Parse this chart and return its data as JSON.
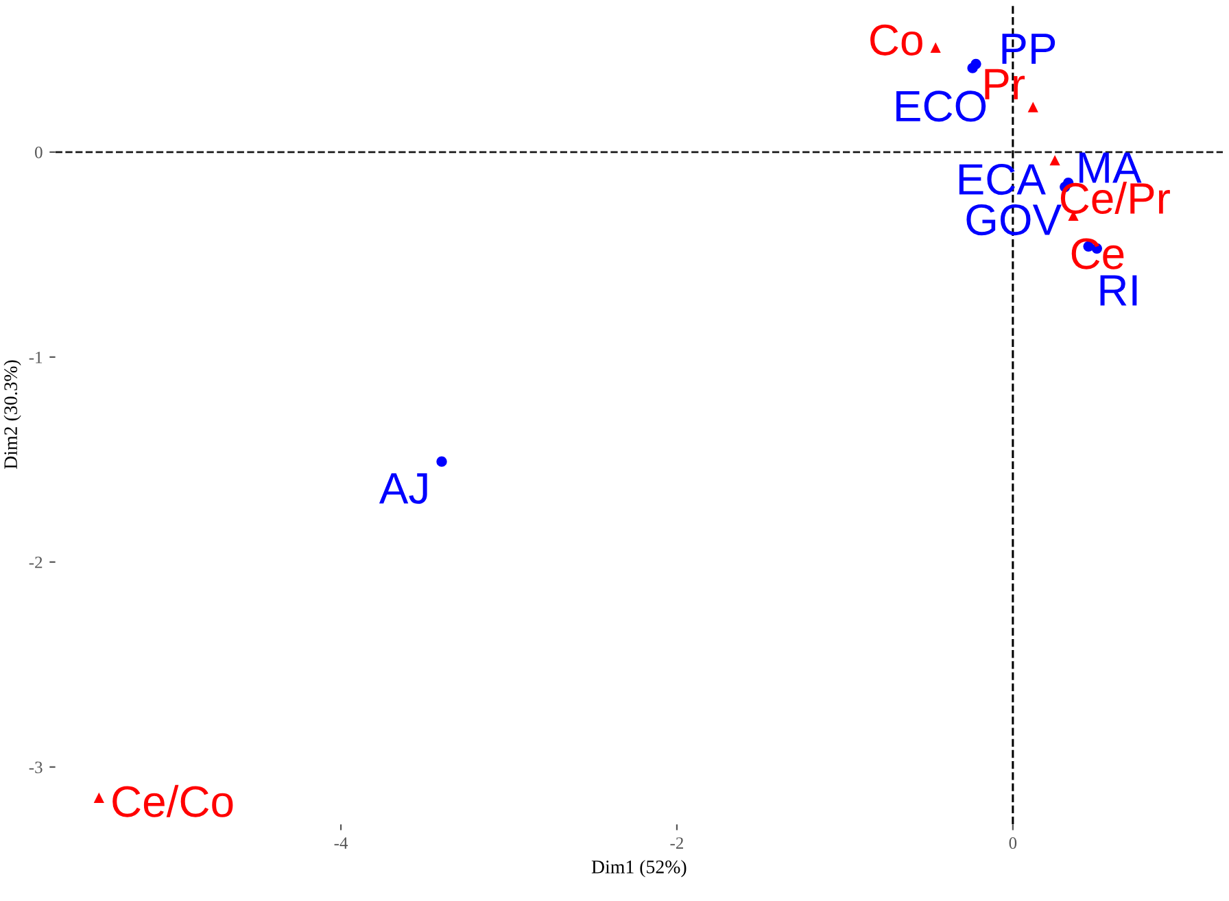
{
  "chart_data": {
    "type": "scatter",
    "xlabel": "Dim1 (52%)",
    "ylabel": "Dim2 (30.3%)",
    "xlim": [
      -5.7,
      1.25
    ],
    "ylim": [
      -3.28,
      0.72
    ],
    "xticks": [
      -4,
      -2,
      0
    ],
    "yticks": [
      -3,
      -2,
      -1,
      0
    ],
    "grid": false,
    "legend": false,
    "ref_lines": [
      {
        "axis": "x",
        "value": 0,
        "line_style": "dashed",
        "color": "#000000"
      },
      {
        "axis": "y",
        "value": 0,
        "line_style": "dashed",
        "color": "#1a1a1a"
      }
    ],
    "series": [
      {
        "color": "#0000ff",
        "marker": "circle",
        "x": [
          -0.22,
          -0.24,
          0.31,
          0.33,
          0.45,
          0.5,
          -3.4
        ],
        "values": [
          0.43,
          0.41,
          -0.17,
          -0.15,
          -0.46,
          -0.47,
          -1.51
        ],
        "value_labels": [
          "PP",
          "ECO",
          "ECA",
          "MA",
          "GOV",
          "RI",
          "AJ"
        ]
      },
      {
        "color": "#ff0000",
        "marker": "triangle",
        "x": [
          -0.46,
          0.12,
          0.25,
          0.36,
          -5.44
        ],
        "values": [
          0.51,
          0.22,
          -0.04,
          -0.31,
          -3.15
        ],
        "value_labels": [
          "Co",
          "Pr",
          "Ce/Pr",
          "Ce",
          "Ce/Co"
        ]
      }
    ]
  }
}
